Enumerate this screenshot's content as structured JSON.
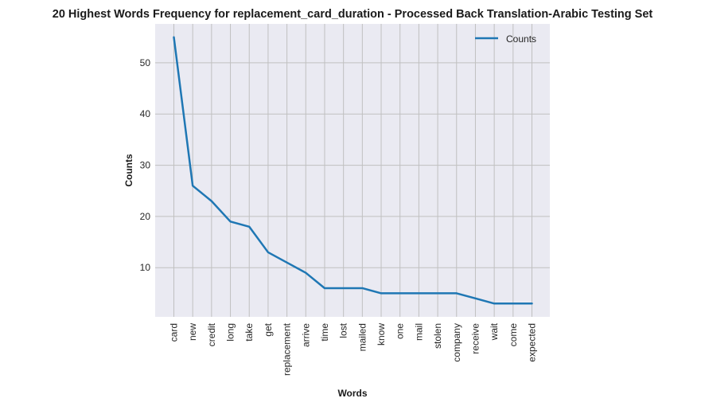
{
  "chart_data": {
    "type": "line",
    "title": "20 Highest Words Frequency for replacement_card_duration - Processed Back Translation-Arabic Testing Set",
    "xlabel": "Words",
    "ylabel": "Counts",
    "categories": [
      "card",
      "new",
      "credit",
      "long",
      "take",
      "get",
      "replacement",
      "arrive",
      "time",
      "lost",
      "mailed",
      "know",
      "one",
      "mail",
      "stolen",
      "company",
      "receive",
      "wait",
      "come",
      "expected"
    ],
    "series": [
      {
        "name": "Counts",
        "values": [
          55,
          26,
          23,
          19,
          18,
          13,
          11,
          9,
          6,
          6,
          6,
          5,
          5,
          5,
          5,
          5,
          4,
          3,
          3,
          3
        ]
      }
    ],
    "ylim": [
      0.4,
      57.6
    ],
    "yticks": [
      10,
      20,
      30,
      40,
      50
    ],
    "grid": true,
    "legend_position": "top-right",
    "colors": {
      "line": "#1f77b4",
      "plot_bg": "#eaeaf2",
      "grid": "#c0c0c0"
    }
  }
}
